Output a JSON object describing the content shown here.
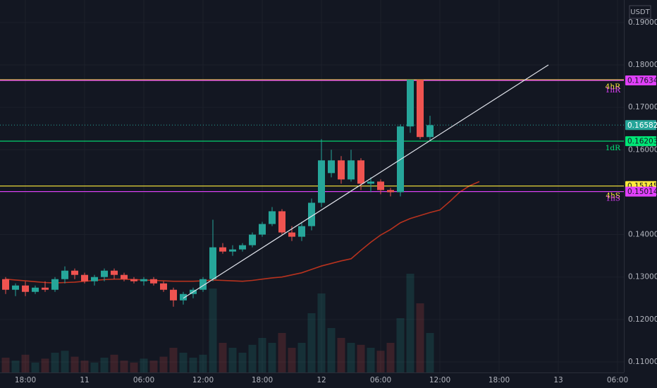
{
  "chart_data": {
    "type": "candlestick",
    "currency": "USDT",
    "categories": [
      null,
      null,
      "18:00",
      null,
      null,
      null,
      null,
      null,
      "11",
      null,
      null,
      null,
      null,
      null,
      "06:00",
      null,
      null,
      null,
      null,
      null,
      "12:00",
      null,
      null,
      null,
      null,
      null,
      "18:00",
      null,
      null,
      null,
      null,
      null,
      "12",
      null,
      null,
      null,
      null,
      null,
      "06:00",
      null,
      null,
      null,
      null,
      null,
      "12:00",
      null,
      null,
      null,
      null,
      null,
      "18:00",
      null,
      null,
      null,
      null,
      null,
      "13",
      null,
      null,
      null,
      null,
      null,
      "06:00"
    ],
    "open": [
      0.1295,
      0.127,
      0.128,
      0.1265,
      0.1275,
      0.127,
      0.1295,
      0.1315,
      0.1305,
      0.129,
      0.13,
      0.1315,
      0.1305,
      0.1295,
      0.129,
      0.1295,
      0.1285,
      0.127,
      0.1245,
      0.126,
      0.127,
      0.1295,
      0.137,
      0.136,
      0.1365,
      0.1375,
      0.14,
      0.1425,
      0.1455,
      0.1405,
      0.1395,
      0.142,
      0.1475,
      0.1545,
      0.1575,
      0.153,
      0.1575,
      0.152,
      0.1525,
      0.1505,
      0.15,
      0.1655,
      0.1765,
      0.163,
      null,
      null,
      null,
      null,
      null,
      null,
      null,
      null,
      null,
      null,
      null,
      null,
      null,
      null,
      null,
      null,
      null,
      null,
      null
    ],
    "high": [
      0.13,
      0.1285,
      0.129,
      0.128,
      0.129,
      0.13,
      0.1325,
      0.132,
      0.131,
      0.1305,
      0.132,
      0.132,
      0.131,
      0.13,
      0.13,
      0.13,
      0.129,
      0.1275,
      0.1265,
      0.1275,
      0.13,
      0.1435,
      0.138,
      0.1375,
      0.138,
      0.1405,
      0.143,
      0.1465,
      0.146,
      0.142,
      0.143,
      0.1485,
      0.1625,
      0.16,
      0.1585,
      0.16,
      0.158,
      0.1535,
      0.153,
      0.151,
      0.166,
      0.1765,
      0.1765,
      0.168,
      null,
      null,
      null,
      null,
      null,
      null,
      null,
      null,
      null,
      null,
      null,
      null,
      null,
      null,
      null,
      null,
      null,
      null,
      null
    ],
    "low": [
      0.126,
      0.1255,
      0.1255,
      0.126,
      0.1265,
      0.1265,
      0.1285,
      0.1295,
      0.1285,
      0.128,
      0.129,
      0.1295,
      0.129,
      0.1285,
      0.128,
      0.128,
      0.1265,
      0.123,
      0.1235,
      0.125,
      0.1265,
      0.129,
      0.1355,
      0.135,
      0.136,
      0.137,
      0.1395,
      0.142,
      0.14,
      0.1385,
      0.1385,
      0.141,
      0.1465,
      0.1535,
      0.152,
      0.1525,
      0.1505,
      0.15,
      0.1495,
      0.149,
      0.149,
      0.164,
      0.1625,
      0.162,
      null,
      null,
      null,
      null,
      null,
      null,
      null,
      null,
      null,
      null,
      null,
      null,
      null,
      null,
      null,
      null,
      null,
      null,
      null
    ],
    "close": [
      0.127,
      0.128,
      0.1265,
      0.1275,
      0.127,
      0.1295,
      0.1315,
      0.1305,
      0.129,
      0.13,
      0.1315,
      0.1305,
      0.1295,
      0.129,
      0.1295,
      0.1285,
      0.127,
      0.1245,
      0.126,
      0.127,
      0.1295,
      0.137,
      0.136,
      0.1365,
      0.1375,
      0.14,
      0.1425,
      0.1455,
      0.1405,
      0.1395,
      0.142,
      0.1475,
      0.1575,
      0.1575,
      0.153,
      0.1575,
      0.152,
      0.1525,
      0.1505,
      0.15,
      0.1655,
      0.1765,
      0.163,
      0.1658,
      null,
      null,
      null,
      null,
      null,
      null,
      null,
      null,
      null,
      null,
      null,
      null,
      null,
      null,
      null,
      null,
      null,
      null,
      null
    ],
    "volume": [
      15,
      12,
      18,
      10,
      14,
      20,
      22,
      16,
      12,
      10,
      15,
      18,
      12,
      10,
      14,
      12,
      16,
      25,
      20,
      15,
      18,
      85,
      30,
      25,
      20,
      28,
      35,
      30,
      40,
      25,
      30,
      60,
      80,
      45,
      35,
      30,
      28,
      25,
      22,
      30,
      55,
      100,
      70,
      40,
      null,
      null,
      null,
      null,
      null,
      null,
      null,
      null,
      null,
      null,
      null,
      null,
      null,
      null,
      null,
      null,
      null,
      null,
      null
    ],
    "up_color": "#26a69a",
    "down_color": "#ef5350",
    "moving_average": {
      "color": "#b7321e",
      "values": [
        0.1295,
        0.1293,
        0.1291,
        0.1289,
        0.1287,
        0.1286,
        0.1287,
        0.1288,
        0.129,
        0.1292,
        0.1294,
        0.1295,
        0.1295,
        0.1294,
        0.1293,
        0.1292,
        0.1291,
        0.129,
        0.129,
        0.129,
        0.1291,
        0.1293,
        0.1292,
        0.1291,
        0.129,
        0.1292,
        0.1295,
        0.1298,
        0.13,
        0.1305,
        0.131,
        0.1318,
        0.1326,
        0.1332,
        0.1338,
        0.1343,
        0.1363,
        0.1382,
        0.1399,
        0.1412,
        0.1428,
        0.1438,
        0.1445,
        0.1452,
        0.1458,
        0.1478,
        0.15,
        0.1515,
        0.1525,
        null,
        null,
        null,
        null,
        null,
        null,
        null,
        null,
        null,
        null,
        null,
        null,
        null,
        null
      ]
    },
    "trendline": {
      "color": "#e0e3eb",
      "start": {
        "category": 18,
        "price": 0.125
      },
      "end": {
        "category": 55,
        "price": 0.18
      }
    },
    "levels": [
      {
        "name": "4hR",
        "value": 0.1765,
        "color": "#ffeb3b",
        "show_price": false
      },
      {
        "name": "1hR",
        "value": 0.17634,
        "color": "#e040fb",
        "show_price": true
      },
      {
        "name": "1dR",
        "value": 0.16203,
        "color": "#00e676",
        "show_price": true
      },
      {
        "name": "4hS",
        "value": 0.15145,
        "color": "#ffeb3b",
        "show_price": true
      },
      {
        "name": "1hS",
        "value": 0.15014,
        "color": "#e040fb",
        "show_price": true
      }
    ],
    "last_price": {
      "value": 0.16582,
      "color": "#26a69a"
    },
    "ylim": [
      0.1075,
      0.1953
    ],
    "yticks": [
      {
        "value": 0.11,
        "label": "0.11000"
      },
      {
        "value": 0.12,
        "label": "0.12000"
      },
      {
        "value": 0.13,
        "label": "0.13000"
      },
      {
        "value": 0.14,
        "label": "0.14000"
      },
      {
        "value": 0.15,
        "label": "0.15000"
      },
      {
        "value": 0.16,
        "label": "0.16000"
      },
      {
        "value": 0.17,
        "label": "0.17000"
      },
      {
        "value": 0.18,
        "label": "0.18000"
      },
      {
        "value": 0.19,
        "label": "0.19000"
      }
    ],
    "grid": true
  }
}
